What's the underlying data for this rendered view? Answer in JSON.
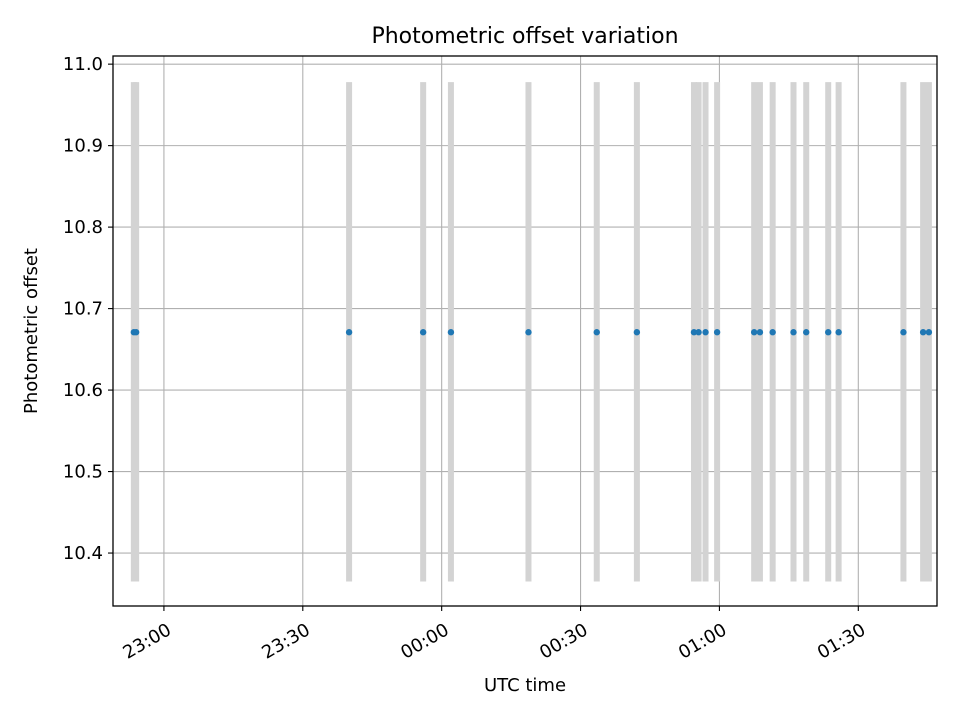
{
  "chart_data": {
    "type": "scatter",
    "title": "Photometric offset variation",
    "xlabel": "UTC time",
    "ylabel": "Photometric offset",
    "x_is_time": true,
    "xlim": [
      "22:49",
      "01:47"
    ],
    "ylim": [
      10.335,
      11.01
    ],
    "grid": true,
    "xticks": [
      "23:00",
      "23:30",
      "00:00",
      "00:30",
      "01:00",
      "01:30"
    ],
    "yticks": [
      10.4,
      10.5,
      10.6,
      10.7,
      10.8,
      10.9,
      11.0
    ],
    "error_bar_range": [
      10.365,
      10.978
    ],
    "points": [
      {
        "x": "22:53:30",
        "y": 10.671
      },
      {
        "x": "22:54:00",
        "y": 10.671
      },
      {
        "x": "23:40:00",
        "y": 10.671
      },
      {
        "x": "23:56:00",
        "y": 10.671
      },
      {
        "x": "00:02:00",
        "y": 10.671
      },
      {
        "x": "00:18:45",
        "y": 10.671
      },
      {
        "x": "00:33:30",
        "y": 10.671
      },
      {
        "x": "00:42:10",
        "y": 10.671
      },
      {
        "x": "00:54:30",
        "y": 10.671
      },
      {
        "x": "00:55:30",
        "y": 10.671
      },
      {
        "x": "00:57:00",
        "y": 10.671
      },
      {
        "x": "00:59:30",
        "y": 10.671
      },
      {
        "x": "01:07:30",
        "y": 10.671
      },
      {
        "x": "01:08:45",
        "y": 10.671
      },
      {
        "x": "01:11:30",
        "y": 10.671
      },
      {
        "x": "01:16:00",
        "y": 10.671
      },
      {
        "x": "01:18:45",
        "y": 10.671
      },
      {
        "x": "01:23:30",
        "y": 10.671
      },
      {
        "x": "01:25:45",
        "y": 10.671
      },
      {
        "x": "01:39:45",
        "y": 10.671
      },
      {
        "x": "01:44:00",
        "y": 10.671
      },
      {
        "x": "01:45:15",
        "y": 10.671
      }
    ],
    "colors": {
      "points": "#1f77b4",
      "error_bars": "#d3d3d3",
      "grid": "#b0b0b0"
    }
  }
}
